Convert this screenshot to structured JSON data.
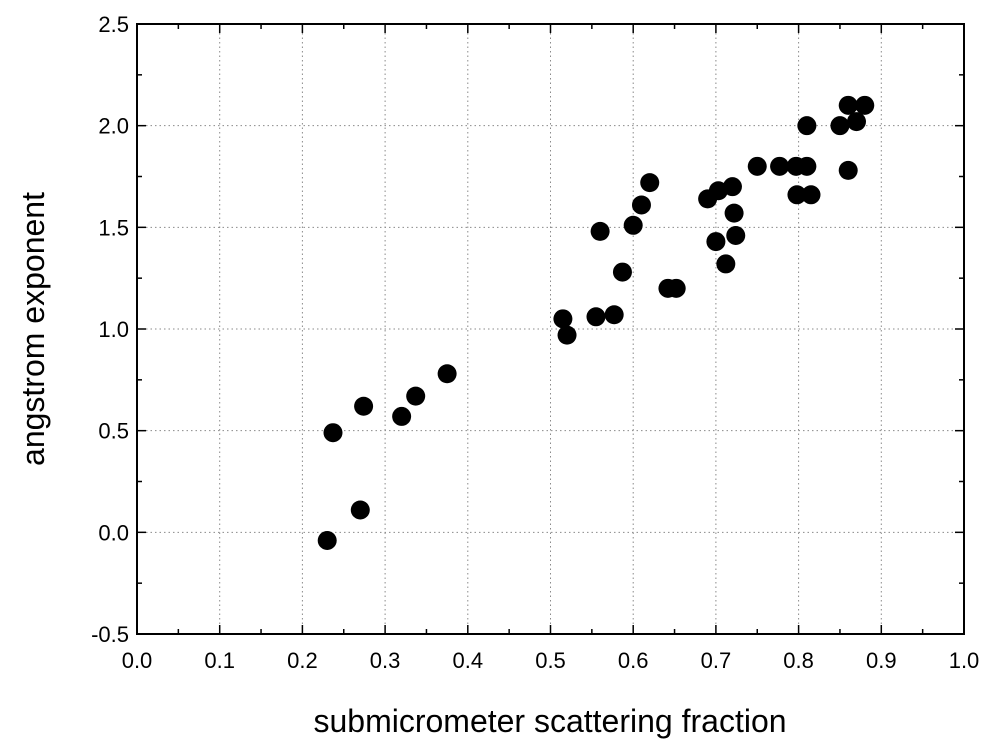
{
  "chart_data": {
    "type": "scatter",
    "title": "",
    "xlabel": "submicrometer scattering fraction",
    "ylabel": "angstrom exponent",
    "xlim": [
      0.0,
      1.0
    ],
    "ylim": [
      -0.5,
      2.5
    ],
    "xticks": [
      "0.0",
      "0.1",
      "0.2",
      "0.3",
      "0.4",
      "0.5",
      "0.6",
      "0.7",
      "0.8",
      "0.9",
      "1.0"
    ],
    "yticks": [
      "-0.5",
      "0.0",
      "0.5",
      "1.0",
      "1.5",
      "2.0",
      "2.5"
    ],
    "grid": true,
    "legend": "none",
    "marker_color": "#000000",
    "series": [
      {
        "x": [
          0.23,
          0.237,
          0.27,
          0.274,
          0.32,
          0.337,
          0.375,
          0.515,
          0.52,
          0.555,
          0.56,
          0.577,
          0.587,
          0.6,
          0.61,
          0.62,
          0.642,
          0.652,
          0.69,
          0.7,
          0.703,
          0.712,
          0.72,
          0.722,
          0.724,
          0.75,
          0.777,
          0.797,
          0.798,
          0.81,
          0.81,
          0.815,
          0.85,
          0.86,
          0.86,
          0.87,
          0.88
        ],
        "y": [
          -0.04,
          0.49,
          0.11,
          0.62,
          0.57,
          0.67,
          0.78,
          1.05,
          0.97,
          1.06,
          1.48,
          1.07,
          1.28,
          1.51,
          1.61,
          1.72,
          1.2,
          1.2,
          1.64,
          1.43,
          1.68,
          1.32,
          1.7,
          1.57,
          1.46,
          1.8,
          1.8,
          1.8,
          1.66,
          2.0,
          1.8,
          1.66,
          2.0,
          1.78,
          2.1,
          2.02,
          2.1
        ]
      }
    ]
  }
}
